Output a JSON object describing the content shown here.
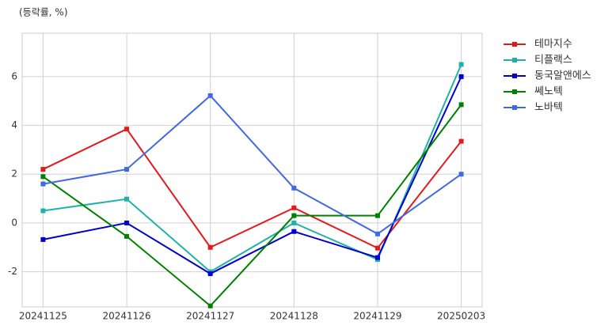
{
  "chart_data": {
    "type": "line",
    "title": "(등락률, %)",
    "categories": [
      "20241125",
      "20241126",
      "20241127",
      "20241128",
      "20241129",
      "20250203"
    ],
    "series": [
      {
        "name": "테마지수",
        "color": "#e31a1c",
        "values": [
          2.2,
          3.85,
          -1.0,
          0.62,
          -1.03,
          3.35
        ]
      },
      {
        "name": "티플랙스",
        "color": "#20b2aa",
        "values": [
          0.5,
          0.98,
          -2.0,
          0.0,
          -1.5,
          6.5
        ]
      },
      {
        "name": "동국알앤에스",
        "color": "#0000cd",
        "values": [
          -0.68,
          0.0,
          -2.08,
          -0.35,
          -1.42,
          6.0
        ]
      },
      {
        "name": "쎄노텍",
        "color": "#008000",
        "values": [
          1.9,
          -0.55,
          -3.4,
          0.3,
          0.3,
          4.85
        ]
      },
      {
        "name": "노바텍",
        "color": "#4169e1",
        "values": [
          1.6,
          2.2,
          5.22,
          1.43,
          -0.45,
          2.0
        ]
      }
    ],
    "ylim": [
      -3.44,
      7.78
    ],
    "yticks": [
      -2,
      0,
      2,
      4,
      6
    ],
    "grid": true,
    "legend": "outside-right"
  }
}
